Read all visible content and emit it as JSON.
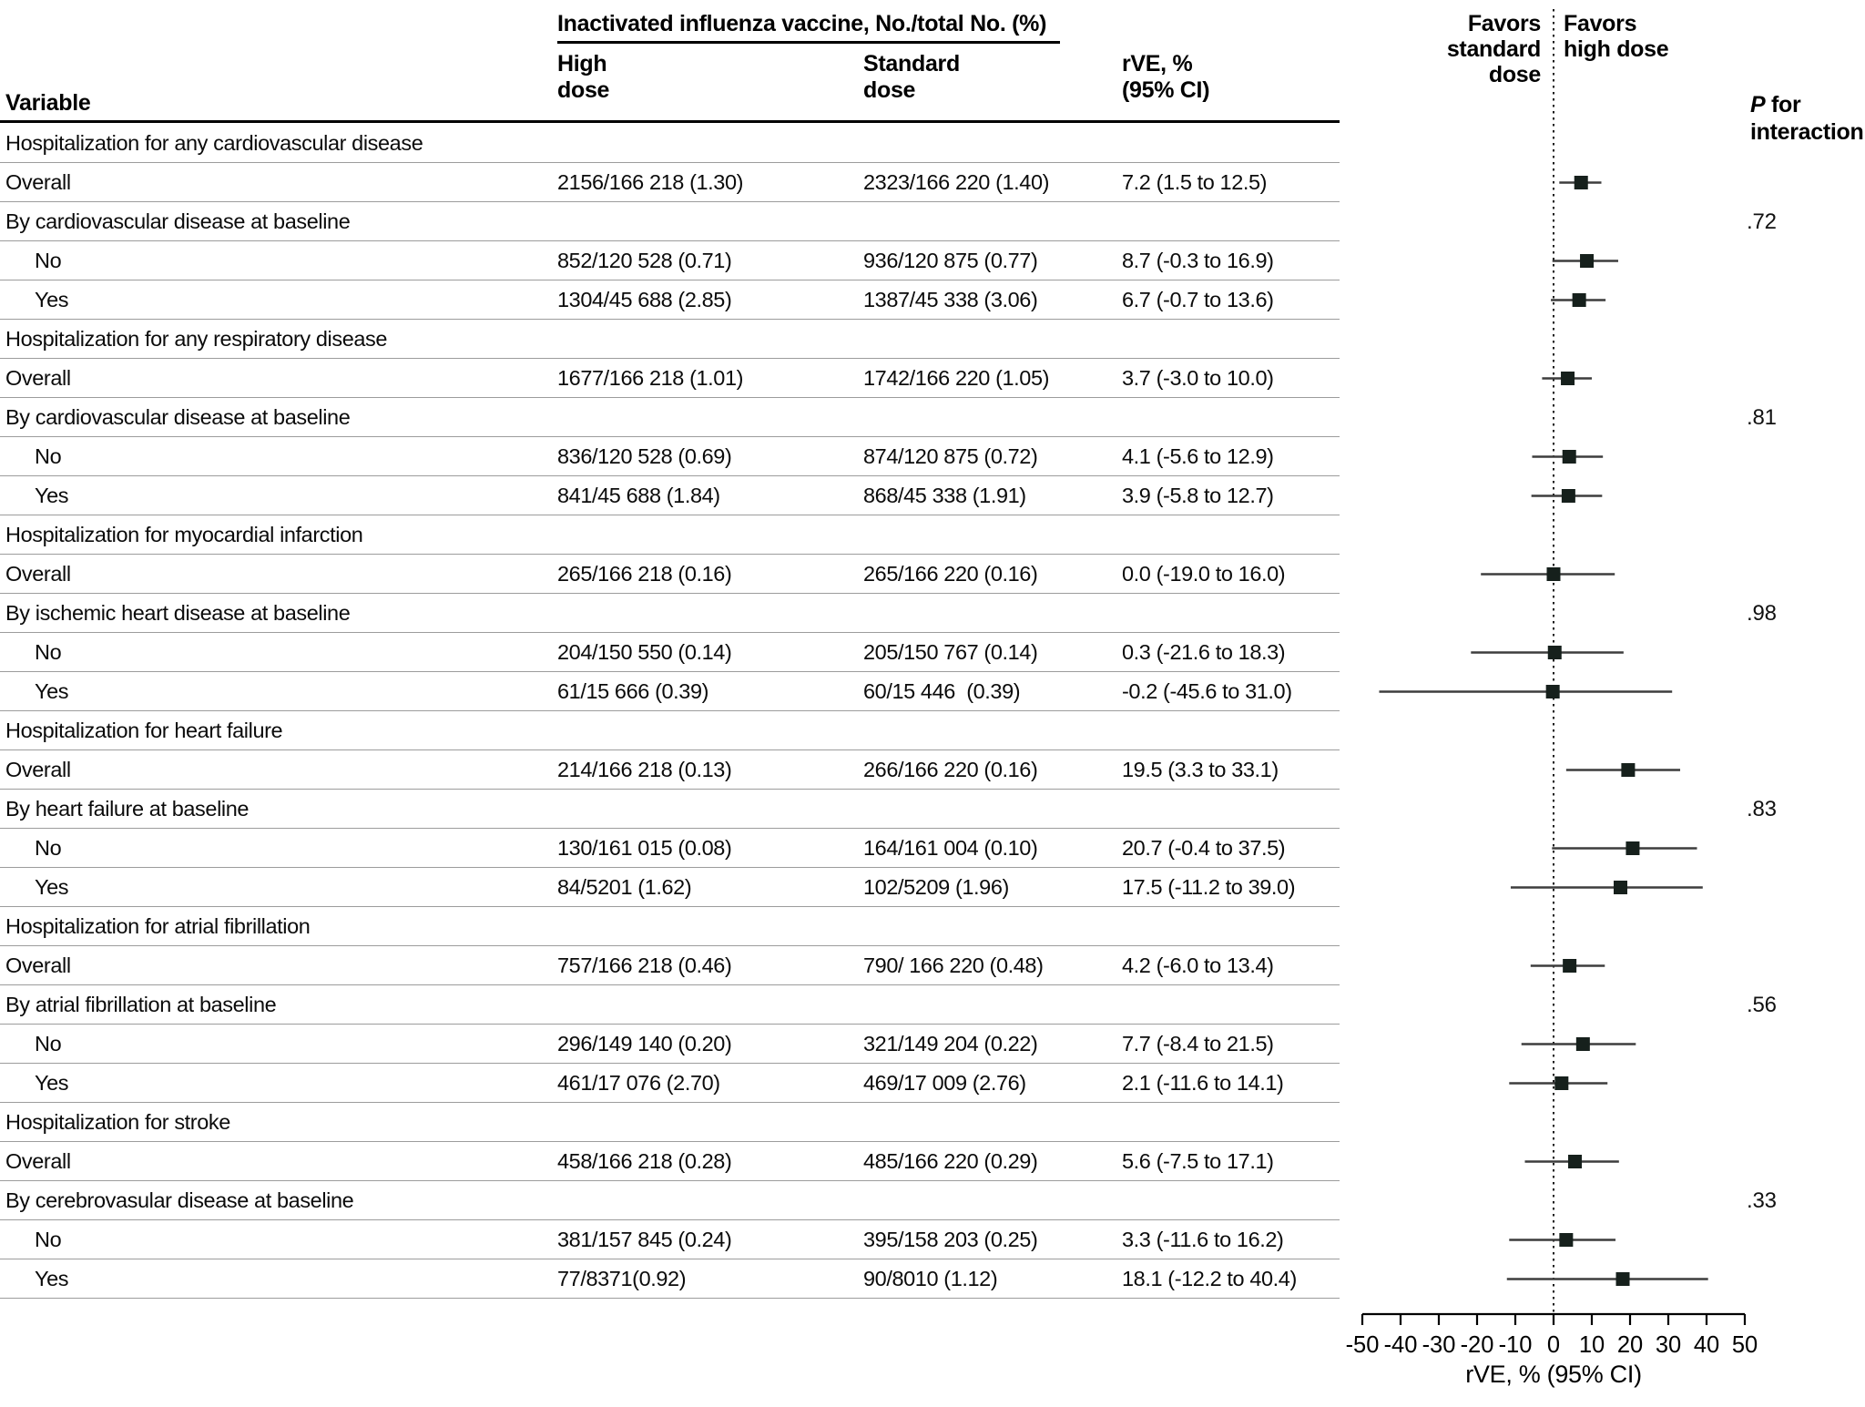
{
  "header": {
    "spanner": "Inactivated influenza vaccine, No./total No. (%)",
    "variable_label": "Variable",
    "col_high": "High\ndose",
    "col_standard": "Standard\ndose",
    "col_rve": "rVE, %\n(95% CI)",
    "favors_left": "Favors\nstandard\ndose",
    "favors_right": "Favors\nhigh dose",
    "p_italic": "P",
    "p_rest": " for\ninteraction"
  },
  "chart_data": {
    "type": "forest",
    "title": "",
    "xlabel": "rVE, % (95% CI)",
    "xlim": [
      -50,
      50
    ],
    "xticks": [
      -50,
      -40,
      -30,
      -20,
      -10,
      0,
      10,
      20,
      30,
      40,
      50
    ],
    "reference_line": 0,
    "marker_color": "#16201c",
    "whisker_color": "#3d3d3d",
    "legend_left": "Favors standard dose",
    "legend_right": "Favors high dose",
    "sections": [
      {
        "title": "Hospitalization for any cardiovascular disease",
        "p_interaction": ".72",
        "rows": [
          {
            "kind": "data",
            "label": "Overall",
            "high": "2156/166 218 (1.30)",
            "standard": "2323/166 220 (1.40)",
            "rve": "7.2 (1.5 to 12.5)",
            "est": 7.2,
            "lo": 1.5,
            "hi": 12.5
          },
          {
            "kind": "subheader",
            "label": "By cardiovascular disease at baseline"
          },
          {
            "kind": "data",
            "indent": true,
            "label": "No",
            "high": "852/120 528 (0.71)",
            "standard": "936/120 875 (0.77)",
            "rve": "8.7 (-0.3 to 16.9)",
            "est": 8.7,
            "lo": -0.3,
            "hi": 16.9
          },
          {
            "kind": "data",
            "indent": true,
            "label": "Yes",
            "high": "1304/45 688 (2.85)",
            "standard": "1387/45 338 (3.06)",
            "rve": "6.7 (-0.7 to 13.6)",
            "est": 6.7,
            "lo": -0.7,
            "hi": 13.6
          }
        ]
      },
      {
        "title": "Hospitalization for any respiratory disease",
        "p_interaction": ".81",
        "rows": [
          {
            "kind": "data",
            "label": "Overall",
            "high": "1677/166 218 (1.01)",
            "standard": "1742/166 220 (1.05)",
            "rve": "3.7 (-3.0 to 10.0)",
            "est": 3.7,
            "lo": -3.0,
            "hi": 10.0
          },
          {
            "kind": "subheader",
            "label": "By cardiovascular disease at baseline"
          },
          {
            "kind": "data",
            "indent": true,
            "label": "No",
            "high": "836/120 528 (0.69)",
            "standard": "874/120 875 (0.72)",
            "rve": "4.1 (-5.6 to 12.9)",
            "est": 4.1,
            "lo": -5.6,
            "hi": 12.9
          },
          {
            "kind": "data",
            "indent": true,
            "label": "Yes",
            "high": "841/45 688 (1.84)",
            "standard": "868/45 338 (1.91)",
            "rve": "3.9 (-5.8 to 12.7)",
            "est": 3.9,
            "lo": -5.8,
            "hi": 12.7
          }
        ]
      },
      {
        "title": "Hospitalization for myocardial infarction",
        "p_interaction": ".98",
        "rows": [
          {
            "kind": "data",
            "label": "Overall",
            "high": "265/166 218 (0.16)",
            "standard": "265/166 220 (0.16)",
            "rve": "0.0 (-19.0 to 16.0)",
            "est": 0.0,
            "lo": -19.0,
            "hi": 16.0
          },
          {
            "kind": "subheader",
            "label": "By ischemic heart disease at baseline"
          },
          {
            "kind": "data",
            "indent": true,
            "label": "No",
            "high": "204/150 550 (0.14)",
            "standard": "205/150 767 (0.14)",
            "rve": "0.3 (-21.6 to 18.3)",
            "est": 0.3,
            "lo": -21.6,
            "hi": 18.3
          },
          {
            "kind": "data",
            "indent": true,
            "label": "Yes",
            "high": "61/15 666 (0.39)",
            "standard": "60/15 446  (0.39)",
            "rve": "-0.2 (-45.6 to 31.0)",
            "est": -0.2,
            "lo": -45.6,
            "hi": 31.0
          }
        ]
      },
      {
        "title": "Hospitalization for heart failure",
        "p_interaction": ".83",
        "rows": [
          {
            "kind": "data",
            "label": "Overall",
            "high": "214/166 218 (0.13)",
            "standard": "266/166 220 (0.16)",
            "rve": "19.5 (3.3 to 33.1)",
            "est": 19.5,
            "lo": 3.3,
            "hi": 33.1
          },
          {
            "kind": "subheader",
            "label": "By heart failure at baseline"
          },
          {
            "kind": "data",
            "indent": true,
            "label": "No",
            "high": "130/161 015 (0.08)",
            "standard": "164/161 004 (0.10)",
            "rve": "20.7 (-0.4 to 37.5)",
            "est": 20.7,
            "lo": -0.4,
            "hi": 37.5
          },
          {
            "kind": "data",
            "indent": true,
            "label": "Yes",
            "high": "84/5201 (1.62)",
            "standard": "102/5209 (1.96)",
            "rve": "17.5 (-11.2 to 39.0)",
            "est": 17.5,
            "lo": -11.2,
            "hi": 39.0
          }
        ]
      },
      {
        "title": "Hospitalization for atrial fibrillation",
        "p_interaction": ".56",
        "rows": [
          {
            "kind": "data",
            "label": "Overall",
            "high": "757/166 218 (0.46)",
            "standard": "790/ 166 220 (0.48)",
            "rve": "4.2 (-6.0 to 13.4)",
            "est": 4.2,
            "lo": -6.0,
            "hi": 13.4
          },
          {
            "kind": "subheader",
            "label": "By atrial fibrillation at baseline"
          },
          {
            "kind": "data",
            "indent": true,
            "label": "No",
            "high": "296/149 140 (0.20)",
            "standard": "321/149 204 (0.22)",
            "rve": "7.7 (-8.4 to 21.5)",
            "est": 7.7,
            "lo": -8.4,
            "hi": 21.5
          },
          {
            "kind": "data",
            "indent": true,
            "label": "Yes",
            "high": "461/17 076 (2.70)",
            "standard": "469/17 009 (2.76)",
            "rve": "2.1 (-11.6 to 14.1)",
            "est": 2.1,
            "lo": -11.6,
            "hi": 14.1
          }
        ]
      },
      {
        "title": "Hospitalization for stroke",
        "p_interaction": ".33",
        "rows": [
          {
            "kind": "data",
            "label": "Overall",
            "high": "458/166 218 (0.28)",
            "standard": "485/166 220 (0.29)",
            "rve": "5.6 (-7.5 to 17.1)",
            "est": 5.6,
            "lo": -7.5,
            "hi": 17.1
          },
          {
            "kind": "subheader",
            "label": "By cerebrovasular disease at baseline"
          },
          {
            "kind": "data",
            "indent": true,
            "label": "No",
            "high": "381/157 845 (0.24)",
            "standard": "395/158 203 (0.25)",
            "rve": "3.3 (-11.6 to 16.2)",
            "est": 3.3,
            "lo": -11.6,
            "hi": 16.2
          },
          {
            "kind": "data",
            "indent": true,
            "label": "Yes",
            "high": "77/8371(0.92)",
            "standard": "90/8010 (1.12)",
            "rve": "18.1 (-12.2 to 40.4)",
            "est": 18.1,
            "lo": -12.2,
            "hi": 40.4
          }
        ]
      }
    ]
  }
}
